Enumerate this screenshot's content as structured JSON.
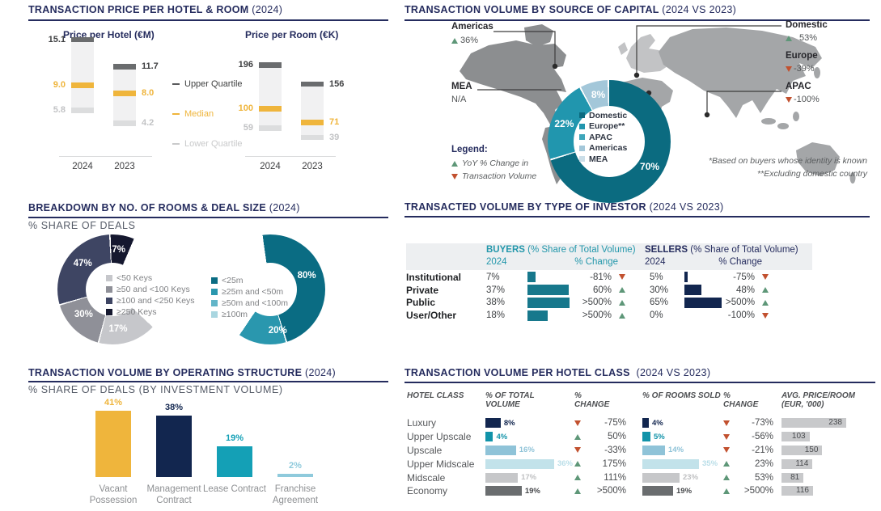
{
  "colors": {
    "navy": "#252C5E",
    "gold": "#EFB53C",
    "teal_header": "#2397AB",
    "buyer_bar": "#17788C",
    "seller_bar": "#12264F",
    "green_up": "#5E9778",
    "red_down": "#C2512F",
    "header_band": "#EDEFF1"
  },
  "sections": {
    "price": {
      "title": "TRANSACTION PRICE PER HOTEL & ROOM",
      "suffix": "(2024)"
    },
    "capital": {
      "title": "TRANSACTION VOLUME BY SOURCE OF CAPITAL",
      "suffix": "(2024 VS 2023)",
      "legend_title": "Legend:",
      "legend_up": "YoY % Change in",
      "legend_down": "Transaction Volume",
      "footnote1": "*Based on buyers whose identity is known",
      "footnote2": "**Excluding domestic country",
      "callouts": [
        {
          "name": "Americas",
          "value": "36%",
          "dir": "up"
        },
        {
          "name": "MEA",
          "value": "N/A",
          "dir": "none"
        },
        {
          "name": "Domestic",
          "value": "53%",
          "dir": "up"
        },
        {
          "name": "Europe",
          "value": "-39%",
          "dir": "down"
        },
        {
          "name": "APAC",
          "value": "-100%",
          "dir": "down"
        }
      ]
    },
    "rooms": {
      "title": "BREAKDOWN BY NO. OF ROOMS & DEAL SIZE",
      "suffix": "(2024)",
      "subtitle": "% SHARE OF DEALS"
    },
    "investor": {
      "title": "TRANSACTED VOLUME BY TYPE OF INVESTOR",
      "suffix": "(2024 VS 2023)",
      "buyers_label": "BUYERS",
      "buyers_note": "(% Share of Total Volume)",
      "sellers_label": "SELLERS",
      "sellers_note": "(% Share of Total Volume)",
      "year_label": "2024",
      "change_label": "% Change"
    },
    "structure": {
      "title": "TRANSACTION VOLUME BY OPERATING STRUCTURE",
      "suffix": "(2024)",
      "subtitle": "% SHARE OF DEALS (BY INVESTMENT VOLUME)"
    },
    "hotel_class": {
      "title": "TRANSACTION VOLUME PER HOTEL CLASS",
      "suffix": "(2024 VS 2023)",
      "headers": [
        "HOTEL CLASS",
        "% OF TOTAL VOLUME",
        "% CHANGE",
        "% OF ROOMS SOLD",
        "% CHANGE",
        "AVG. PRICE/ROOM (EUR, '000)"
      ]
    }
  },
  "chart_data": [
    {
      "type": "bar",
      "subtype": "quartile",
      "title": "Price per Hotel (€M)",
      "categories": [
        "2024",
        "2023"
      ],
      "ylim": [
        0,
        15.5
      ],
      "series": [
        {
          "name": "Upper Quartile",
          "values": [
            15.1,
            11.7
          ],
          "labels": [
            "15.1",
            "11.7"
          ]
        },
        {
          "name": "Median",
          "values": [
            9.0,
            8.0
          ],
          "labels": [
            "9.0",
            "8.0"
          ]
        },
        {
          "name": "Lower Quartile",
          "values": [
            5.8,
            4.2
          ],
          "labels": [
            "5.8",
            "4.2"
          ]
        }
      ],
      "legend": [
        {
          "label": "Upper Quartile",
          "color": "#595A5C",
          "text_color": "#3F4040"
        },
        {
          "label": "Median",
          "color": "#EFB53C",
          "text_color": "#EFB53C"
        },
        {
          "label": "Lower Quartile",
          "color": "#C9CACB",
          "text_color": "#C9CACB"
        }
      ]
    },
    {
      "type": "bar",
      "subtype": "quartile",
      "title": "Price per Room (€K)",
      "categories": [
        "2024",
        "2023"
      ],
      "ylim": [
        0,
        256
      ],
      "series": [
        {
          "name": "Upper Quartile",
          "values": [
            196,
            156
          ],
          "labels": [
            "196",
            "156"
          ]
        },
        {
          "name": "Median",
          "values": [
            100,
            71
          ],
          "labels": [
            "100",
            "71"
          ]
        },
        {
          "name": "Lower Quartile",
          "values": [
            59,
            39
          ],
          "labels": [
            "59",
            "39"
          ]
        }
      ]
    },
    {
      "type": "pie",
      "title": "Transaction volume by source of capital",
      "legend_position": "center",
      "segments": [
        {
          "label": "Domestic",
          "value": 70,
          "color": "#0B6B80"
        },
        {
          "label": "Europe**",
          "value": 22,
          "color": "#2196AE"
        },
        {
          "label": "APAC",
          "value": 0,
          "color": "#3FA6BA"
        },
        {
          "label": "Americas",
          "value": 8,
          "color": "#A3C7D9"
        },
        {
          "label": "MEA",
          "value": 0,
          "color": "#CBDEE8"
        }
      ]
    },
    {
      "type": "pie",
      "title": "Breakdown by no. of rooms",
      "segments": [
        {
          "label": "<50 Keys",
          "value": 17,
          "color": "#C6C7CB"
        },
        {
          "label": "≥50 and <100 Keys",
          "value": 30,
          "color": "#8F9098"
        },
        {
          "label": "≥100 and <250 Keys",
          "value": 47,
          "color": "#3E4563"
        },
        {
          "label": "≥250 Keys",
          "value": 7,
          "color": "#15182F"
        }
      ]
    },
    {
      "type": "pie",
      "title": "Breakdown by deal size",
      "segments": [
        {
          "label": "<25m",
          "value": 80,
          "color": "#0A6C83"
        },
        {
          "label": "≥25m and <50m",
          "value": 20,
          "color": "#2A97AE"
        },
        {
          "label": "≥50m and <100m",
          "value": 0,
          "color": "#62B5C8"
        },
        {
          "label": "≥100m",
          "value": 0,
          "color": "#A9D6E0"
        }
      ]
    },
    {
      "type": "bar",
      "title": "Transaction volume by operating structure",
      "categories": [
        "Vacant Possession",
        "Management Contract",
        "Lease Contract",
        "Franchise Agreement"
      ],
      "values": [
        41,
        38,
        19,
        2
      ],
      "labels": [
        "41%",
        "38%",
        "19%",
        "2%"
      ],
      "colors": [
        "#EFB53C",
        "#12264F",
        "#14A0B6",
        "#8FCADC"
      ],
      "ylim": [
        0,
        50
      ]
    },
    {
      "type": "table",
      "title": "Transacted volume by type of investor",
      "rows": [
        {
          "label": "Institutional",
          "buyer_share": 7,
          "buyer_share_label": "7%",
          "buyer_change": "-81%",
          "buyer_dir": "down",
          "seller_share": 5,
          "seller_share_label": "5%",
          "seller_change": "-75%",
          "seller_dir": "down"
        },
        {
          "label": "Private",
          "buyer_share": 37,
          "buyer_share_label": "37%",
          "buyer_change": "60%",
          "buyer_dir": "up",
          "seller_share": 30,
          "seller_share_label": "30%",
          "seller_change": "48%",
          "seller_dir": "up"
        },
        {
          "label": "Public",
          "buyer_share": 38,
          "buyer_share_label": "38%",
          "buyer_change": ">500%",
          "buyer_dir": "up",
          "seller_share": 65,
          "seller_share_label": "65%",
          "seller_change": ">500%",
          "seller_dir": "up"
        },
        {
          "label": "User/Other",
          "buyer_share": 18,
          "buyer_share_label": "18%",
          "buyer_change": ">500%",
          "buyer_dir": "up",
          "seller_share": 0,
          "seller_share_label": "0%",
          "seller_change": "-100%",
          "seller_dir": "down"
        }
      ]
    },
    {
      "type": "table",
      "title": "Transaction volume per hotel class",
      "rows": [
        {
          "label": "Luxury",
          "volume": 8,
          "volume_label": "8%",
          "bar_color": "#12264F",
          "label_color": "#12264F",
          "volume_change": "-75%",
          "volume_dir": "down",
          "rooms": 4,
          "rooms_label": "4%",
          "rooms_change": "-73%",
          "rooms_dir": "down",
          "price": 238,
          "price_label": "238"
        },
        {
          "label": "Upper Upscale",
          "volume": 4,
          "volume_label": "4%",
          "bar_color": "#1193A9",
          "label_color": "#1193A9",
          "volume_change": "50%",
          "volume_dir": "up",
          "rooms": 5,
          "rooms_label": "5%",
          "rooms_change": "-56%",
          "rooms_dir": "down",
          "price": 103,
          "price_label": "103"
        },
        {
          "label": "Upscale",
          "volume": 16,
          "volume_label": "16%",
          "bar_color": "#8FC3D8",
          "label_color": "#8FC3D8",
          "volume_change": "-33%",
          "volume_dir": "down",
          "rooms": 14,
          "rooms_label": "14%",
          "rooms_change": "-21%",
          "rooms_dir": "down",
          "price": 150,
          "price_label": "150"
        },
        {
          "label": "Upper Midscale",
          "volume": 36,
          "volume_label": "36%",
          "bar_color": "#C2E2EA",
          "label_color": "#B9DEE8",
          "volume_change": "175%",
          "volume_dir": "up",
          "rooms": 35,
          "rooms_label": "35%",
          "rooms_change": "23%",
          "rooms_dir": "up",
          "price": 114,
          "price_label": "114"
        },
        {
          "label": "Midscale",
          "volume": 17,
          "volume_label": "17%",
          "bar_color": "#C6C7C9",
          "label_color": "#BFC0C2",
          "volume_change": "111%",
          "volume_dir": "up",
          "rooms": 23,
          "rooms_label": "23%",
          "rooms_change": "53%",
          "rooms_dir": "up",
          "price": 81,
          "price_label": "81"
        },
        {
          "label": "Economy",
          "volume": 19,
          "volume_label": "19%",
          "bar_color": "#6A6D6F",
          "label_color": "#47494C",
          "volume_change": ">500%",
          "volume_dir": "up",
          "rooms": 19,
          "rooms_label": "19%",
          "rooms_change": ">500%",
          "rooms_dir": "up",
          "price": 116,
          "price_label": "116"
        }
      ]
    }
  ]
}
